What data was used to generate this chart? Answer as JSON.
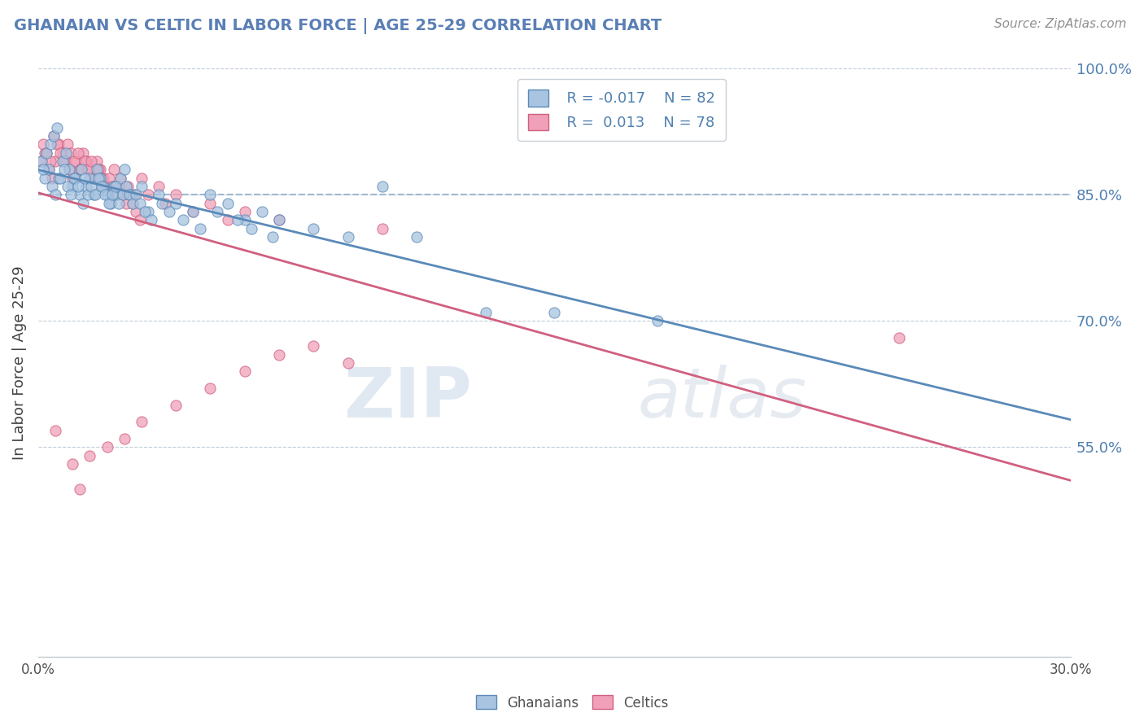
{
  "title": "GHANAIAN VS CELTIC IN LABOR FORCE | AGE 25-29 CORRELATION CHART",
  "source": "Source: ZipAtlas.com",
  "ylabel": "In Labor Force | Age 25-29",
  "xlim": [
    0.0,
    30.0
  ],
  "ylim": [
    30.0,
    100.0
  ],
  "blue_color": "#a8c4e0",
  "pink_color": "#f0a0b8",
  "blue_edge_color": "#5a8ab8",
  "pink_edge_color": "#d06080",
  "blue_line_color": "#5a8ab8",
  "pink_line_color": "#d06080",
  "dashed_line_color": "#a0b8d0",
  "dashed_line_y": 85.0,
  "watermark_zip": "ZIP",
  "watermark_atlas": "atlas",
  "ghanaian_x": [
    0.2,
    0.3,
    0.4,
    0.5,
    0.6,
    0.7,
    0.8,
    0.9,
    1.0,
    1.1,
    1.2,
    1.3,
    1.4,
    1.5,
    1.6,
    1.7,
    1.8,
    1.9,
    2.0,
    2.1,
    2.2,
    2.3,
    2.4,
    2.5,
    2.7,
    3.0,
    3.2,
    3.5,
    4.0,
    4.5,
    5.0,
    5.5,
    6.0,
    6.5,
    7.0,
    8.0,
    9.0,
    10.0,
    11.0,
    13.0,
    15.0,
    18.0,
    0.1,
    0.15,
    0.25,
    0.35,
    0.45,
    0.55,
    0.65,
    0.75,
    0.85,
    0.95,
    1.05,
    1.15,
    1.25,
    1.35,
    1.45,
    1.55,
    1.65,
    1.75,
    1.85,
    1.95,
    2.05,
    2.15,
    2.25,
    2.35,
    2.45,
    2.55,
    2.65,
    2.75,
    2.85,
    2.95,
    3.1,
    3.3,
    3.6,
    3.8,
    4.2,
    4.7,
    5.2,
    5.8,
    6.2,
    6.8
  ],
  "ghanaian_y": [
    87,
    88,
    86,
    85,
    87,
    89,
    90,
    88,
    86,
    87,
    85,
    84,
    86,
    87,
    85,
    88,
    87,
    86,
    85,
    84,
    86,
    85,
    87,
    88,
    85,
    86,
    83,
    85,
    84,
    83,
    85,
    84,
    82,
    83,
    82,
    81,
    80,
    86,
    80,
    71,
    71,
    70,
    89,
    88,
    90,
    91,
    92,
    93,
    87,
    88,
    86,
    85,
    87,
    86,
    88,
    87,
    85,
    86,
    85,
    87,
    86,
    85,
    84,
    85,
    86,
    84,
    85,
    86,
    85,
    84,
    85,
    84,
    83,
    82,
    84,
    83,
    82,
    81,
    83,
    82,
    81,
    80
  ],
  "celtic_x": [
    0.1,
    0.2,
    0.3,
    0.4,
    0.5,
    0.6,
    0.7,
    0.8,
    0.9,
    1.0,
    1.1,
    1.2,
    1.3,
    1.4,
    1.5,
    1.6,
    1.7,
    1.8,
    1.9,
    2.0,
    2.2,
    2.4,
    2.6,
    2.8,
    3.0,
    3.5,
    4.0,
    5.0,
    6.0,
    7.0,
    10.0,
    25.0,
    0.15,
    0.25,
    0.35,
    0.45,
    0.55,
    0.65,
    0.75,
    0.85,
    0.95,
    1.05,
    1.15,
    1.25,
    1.35,
    1.45,
    1.55,
    1.65,
    1.75,
    1.85,
    1.95,
    2.05,
    2.15,
    2.25,
    2.35,
    2.45,
    2.55,
    2.65,
    2.75,
    2.85,
    2.95,
    3.2,
    3.7,
    4.5,
    5.5,
    0.5,
    1.0,
    1.5,
    2.0,
    2.5,
    3.0,
    4.0,
    5.0,
    6.0,
    7.0,
    8.0,
    9.0,
    1.2
  ],
  "celtic_y": [
    89,
    90,
    88,
    87,
    89,
    91,
    90,
    89,
    88,
    87,
    89,
    88,
    90,
    89,
    88,
    87,
    89,
    88,
    87,
    86,
    88,
    87,
    86,
    85,
    87,
    86,
    85,
    84,
    83,
    82,
    81,
    68,
    91,
    90,
    89,
    92,
    91,
    90,
    89,
    91,
    90,
    89,
    90,
    88,
    89,
    88,
    89,
    87,
    88,
    87,
    86,
    87,
    86,
    85,
    86,
    85,
    84,
    85,
    84,
    83,
    82,
    85,
    84,
    83,
    82,
    57,
    53,
    54,
    55,
    56,
    58,
    60,
    62,
    64,
    66,
    67,
    65,
    50
  ]
}
